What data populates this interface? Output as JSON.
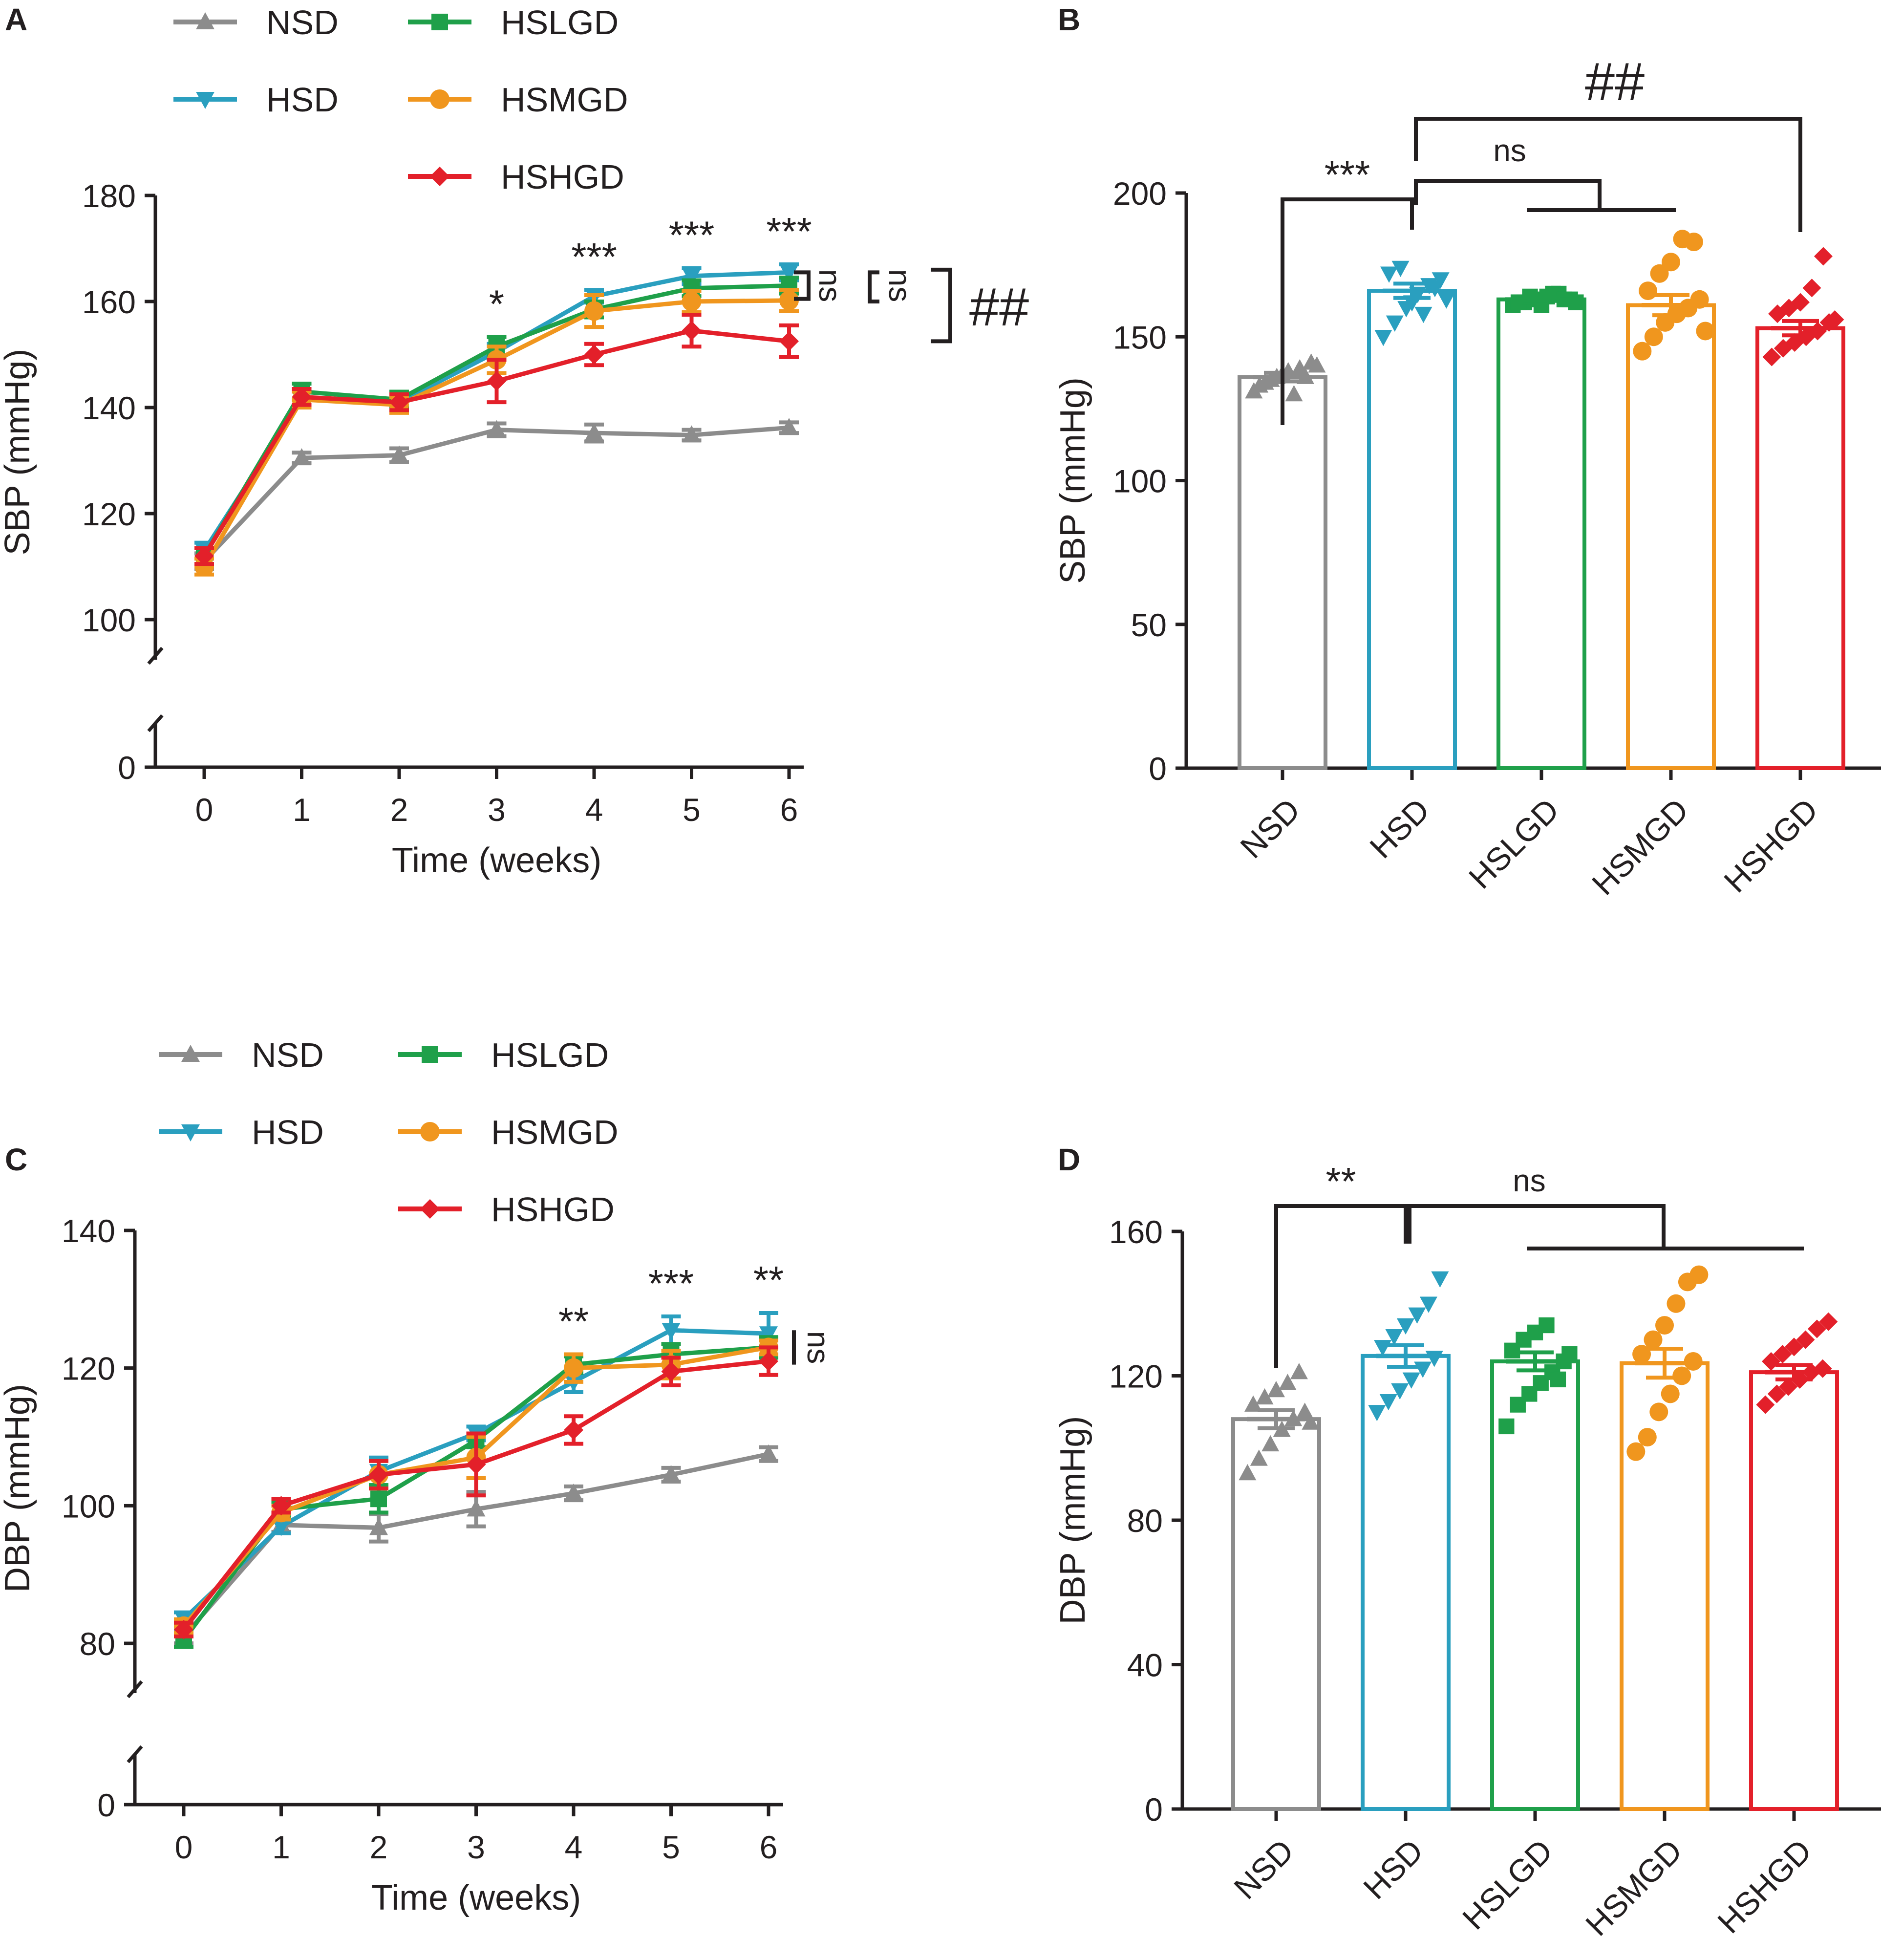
{
  "colors": {
    "NSD": "#8c8c8c",
    "HSD": "#2a9fbf",
    "HSLGD": "#1fa04a",
    "HSMGD": "#f0961e",
    "HSHGD": "#e3202a"
  },
  "legend": {
    "items": [
      "NSD",
      "HSD",
      "HSLGD",
      "HSMGD",
      "HSHGD"
    ]
  },
  "chart_data": [
    {
      "panel": "A",
      "type": "line",
      "xlabel": "Time (weeks)",
      "ylabel": "SBP (mmHg)",
      "x": [
        0,
        1,
        2,
        3,
        4,
        5,
        6
      ],
      "xticks": [
        "0",
        "1",
        "2",
        "3",
        "4",
        "5",
        "6"
      ],
      "yticks": [
        "100",
        "120",
        "140",
        "160",
        "180"
      ],
      "ytick_zero": "0",
      "ylim": [
        100,
        180
      ],
      "axis_break": true,
      "series": [
        {
          "name": "NSD",
          "values": [
            111,
            130.5,
            131,
            135.8,
            135.2,
            134.8,
            136.2
          ],
          "errors": [
            1.5,
            1,
            1.3,
            1.2,
            1.6,
            1,
            1
          ]
        },
        {
          "name": "HSD",
          "values": [
            113,
            141.5,
            141,
            150.5,
            161,
            164.8,
            165.5
          ],
          "errors": [
            1.5,
            1.5,
            1.3,
            1.5,
            1.2,
            1.5,
            1.5
          ]
        },
        {
          "name": "HSLGD",
          "values": [
            112,
            143,
            141.5,
            151.5,
            158.5,
            162.5,
            163
          ],
          "errors": [
            1.5,
            1.5,
            1.5,
            1.8,
            1.5,
            1.5,
            1.5
          ]
        },
        {
          "name": "HSMGD",
          "values": [
            110,
            141.5,
            140.5,
            149,
            158.2,
            160,
            160.2
          ],
          "errors": [
            1.5,
            1.5,
            1.5,
            2.5,
            3,
            2,
            2
          ]
        },
        {
          "name": "HSHGD",
          "values": [
            112,
            142,
            141,
            145,
            150,
            154.5,
            152.5
          ],
          "errors": [
            1.5,
            1.5,
            1.5,
            4,
            2,
            3,
            3
          ]
        }
      ],
      "annotations": {
        "stars": [
          {
            "x": 3,
            "label": "*"
          },
          {
            "x": 4,
            "label": "***"
          },
          {
            "x": 5,
            "label": "***"
          },
          {
            "x": 6,
            "label": "***"
          }
        ],
        "ns": "ns",
        "hash": "##"
      }
    },
    {
      "panel": "B",
      "type": "bar",
      "ylabel": "SBP (mmHg)",
      "ylim": [
        0,
        200
      ],
      "yticks": [
        "0",
        "50",
        "100",
        "150",
        "200"
      ],
      "categories": [
        "NSD",
        "HSD",
        "HSLGD",
        "HSMGD",
        "HSHGD"
      ],
      "values": [
        136,
        166,
        163,
        161,
        153
      ],
      "sem": [
        1.5,
        2.5,
        0.5,
        3.5,
        2.5
      ],
      "points": [
        [
          131,
          134,
          136,
          138,
          139,
          141,
          133,
          135,
          137,
          130,
          136,
          140
        ],
        [
          150,
          155,
          160,
          165,
          168,
          170,
          172,
          174,
          162,
          158,
          167,
          163
        ],
        [
          161,
          162,
          163,
          164,
          165,
          163,
          162,
          164,
          161,
          165,
          163,
          162
        ],
        [
          145,
          150,
          155,
          158,
          160,
          163,
          166,
          172,
          176,
          184,
          183,
          152
        ],
        [
          143,
          146,
          148,
          150,
          152,
          155,
          158,
          160,
          162,
          167,
          178,
          156
        ]
      ],
      "annotations": {
        "stars": "***",
        "ns": "ns",
        "hash": "##"
      }
    },
    {
      "panel": "C",
      "type": "line",
      "xlabel": "Time (weeks)",
      "ylabel": "DBP (mmHg)",
      "x": [
        0,
        1,
        2,
        3,
        4,
        5,
        6
      ],
      "xticks": [
        "0",
        "1",
        "2",
        "3",
        "4",
        "5",
        "6"
      ],
      "yticks": [
        "80",
        "100",
        "120",
        "140"
      ],
      "ytick_zero": "0",
      "ylim": [
        80,
        140
      ],
      "axis_break": true,
      "series": [
        {
          "name": "NSD",
          "values": [
            81,
            97.2,
            96.8,
            99.5,
            101.8,
            104.5,
            107.5
          ],
          "errors": [
            1,
            1,
            2,
            2.5,
            1,
            1,
            1
          ]
        },
        {
          "name": "HSD",
          "values": [
            83.5,
            97,
            105,
            110.5,
            118,
            125.5,
            125
          ],
          "errors": [
            1,
            1,
            2,
            1,
            1.5,
            2,
            3
          ]
        },
        {
          "name": "HSLGD",
          "values": [
            80.5,
            99.5,
            101,
            109.5,
            120.5,
            122,
            123
          ],
          "errors": [
            1,
            1,
            2,
            1,
            1.2,
            1.5,
            1.5
          ]
        },
        {
          "name": "HSMGD",
          "values": [
            82.5,
            99,
            104.5,
            107,
            120,
            120.5,
            123
          ],
          "errors": [
            1,
            1,
            2,
            3,
            2,
            2,
            1
          ]
        },
        {
          "name": "HSHGD",
          "values": [
            82,
            100,
            104.5,
            106,
            111,
            119.5,
            121
          ],
          "errors": [
            1,
            1,
            2,
            4.5,
            2,
            2,
            2
          ]
        }
      ],
      "annotations": {
        "stars": [
          {
            "x": 4,
            "label": "**"
          },
          {
            "x": 5,
            "label": "***"
          },
          {
            "x": 6,
            "label": "**"
          }
        ],
        "ns": "ns"
      }
    },
    {
      "panel": "D",
      "type": "bar",
      "ylabel": "DBP (mmHg)",
      "ylim": [
        0,
        160
      ],
      "yticks": [
        "0",
        "40",
        "80",
        "120",
        "160"
      ],
      "categories": [
        "NSD",
        "HSD",
        "HSLGD",
        "HSMGD",
        "HSHGD"
      ],
      "values": [
        108,
        125.5,
        124,
        123.5,
        121
      ],
      "sem": [
        2.5,
        3,
        2.5,
        4,
        2
      ],
      "points": [
        [
          93,
          97,
          101,
          105,
          108,
          110,
          112,
          114,
          116,
          118,
          121,
          107
        ],
        [
          110,
          113,
          116,
          119,
          122,
          125,
          128,
          131,
          134,
          137,
          140,
          147
        ],
        [
          106,
          112,
          115,
          118,
          121,
          124,
          127,
          130,
          132,
          134,
          119,
          126
        ],
        [
          99,
          103,
          110,
          115,
          120,
          124,
          126,
          130,
          134,
          140,
          146,
          148
        ],
        [
          112,
          115,
          117,
          119,
          121,
          122,
          124,
          126,
          128,
          130,
          133,
          135
        ]
      ],
      "annotations": {
        "stars": "**",
        "ns": "ns"
      }
    }
  ]
}
